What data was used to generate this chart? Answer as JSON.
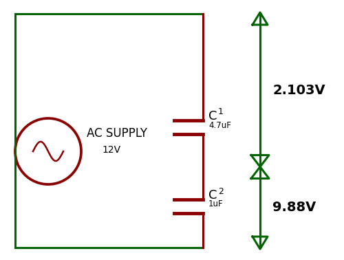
{
  "bg_color": "#ffffff",
  "dark_green": "#006400",
  "dark_red": "#8B0000",
  "text_color": "#000000",
  "figsize": [
    5.0,
    3.78
  ],
  "dpi": 100,
  "ac_supply_label": "AC SUPPLY",
  "ac_supply_voltage": "12V",
  "c1_label": "C",
  "c1_sub": "1",
  "c1_value": "4.7uF",
  "c2_label": "C",
  "c2_sub": "2",
  "c2_value": "1uF",
  "v1_label": "2.103V",
  "v2_label": "9.88V"
}
